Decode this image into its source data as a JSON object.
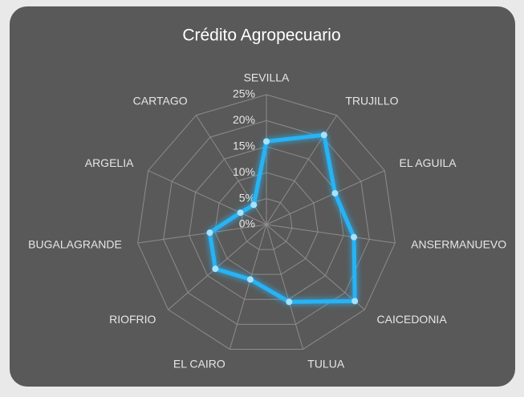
{
  "chart_data": {
    "type": "radar",
    "title": "Crédito Agropecuario",
    "categories": [
      "SEVILLA",
      "TRUJILLO",
      "EL AGUILA",
      "ANSERMANUEVO",
      "CAICEDONIA",
      "TULUA",
      "EL CAIRO",
      "RIOFRIO",
      "BUGALAGRANDE",
      "ARGELIA",
      "CARTAGO"
    ],
    "values": [
      16,
      20.5,
      14.5,
      17,
      22.5,
      15.5,
      11,
      13,
      11,
      5.5,
      4.5
    ],
    "color": "#27b4f5",
    "ylim": [
      0,
      25
    ],
    "yticks": [
      {
        "value": 0,
        "label": "0%"
      },
      {
        "value": 5,
        "label": "5%"
      },
      {
        "value": 10,
        "label": "10%"
      },
      {
        "value": 15,
        "label": "15%"
      },
      {
        "value": 20,
        "label": "20%"
      },
      {
        "value": 25,
        "label": "25%"
      }
    ],
    "grid": true
  }
}
